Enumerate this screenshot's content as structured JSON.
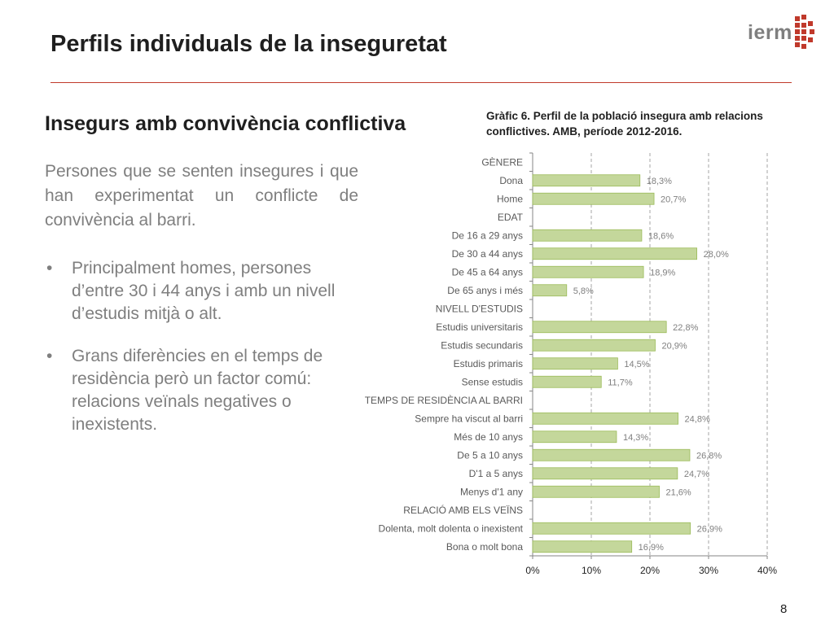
{
  "slide": {
    "title": "Perfils individuals de la inseguretat",
    "subtitle": "Insegurs amb convivència conflictiva",
    "intro": "Persones que se senten insegures i que han experimentat un conflicte de convivència al barri.",
    "bullets": [
      "Principalment homes, persones d’entre 30 i 44 anys i amb un nivell d’estudis mitjà o alt.",
      "Grans diferències en el temps de residència però un factor comú: relacions veïnals negatives o inexistents."
    ],
    "page_number": "8",
    "logo": {
      "text": "ierm",
      "icon": "ierm-pixel-logo-icon",
      "color": "#c0392b"
    }
  },
  "chart_data": {
    "type": "bar",
    "orientation": "horizontal",
    "title": "Gràfic 6. Perfil de la població insegura amb relacions conflictives. AMB, període 2012-2016.",
    "categories": [
      "GÈNERE",
      "Dona",
      "Home",
      "EDAT",
      "De 16 a 29 anys",
      "De 30 a 44 anys",
      "De 45 a 64 anys",
      "De 65 anys i més",
      "NIVELL D'ESTUDIS",
      "Estudis universitaris",
      "Estudis secundaris",
      "Estudis primaris",
      "Sense estudis",
      "TEMPS DE RESIDÈNCIA AL BARRI",
      "Sempre ha viscut al barri",
      "Més de 10 anys",
      "De 5 a 10 anys",
      "D'1 a 5 anys",
      "Menys d'1 any",
      "RELACIÓ AMB ELS VEÏNS",
      "Dolenta, molt dolenta o inexistent",
      "Bona o molt bona"
    ],
    "values": [
      null,
      18.3,
      20.7,
      null,
      18.6,
      28.0,
      18.9,
      5.8,
      null,
      22.8,
      20.9,
      14.5,
      11.7,
      null,
      24.8,
      14.3,
      26.8,
      24.7,
      21.6,
      null,
      26.9,
      16.9
    ],
    "data_labels": [
      "",
      "18,3%",
      "20,7%",
      "",
      "18,6%",
      "28,0%",
      "18,9%",
      "5,8%",
      "",
      "22,8%",
      "20,9%",
      "14,5%",
      "11,7%",
      "",
      "24,8%",
      "14,3%",
      "26,8%",
      "24,7%",
      "21,6%",
      "",
      "26,9%",
      "16,9%"
    ],
    "xlim": [
      0,
      40
    ],
    "x_ticks": [
      "0%",
      "10%",
      "20%",
      "30%",
      "40%"
    ],
    "xlabel": "",
    "ylabel": "",
    "bar_color": "#c4d79b",
    "bar_border": "#9bbb59",
    "grid": "vertical dashed",
    "legend": "none"
  }
}
